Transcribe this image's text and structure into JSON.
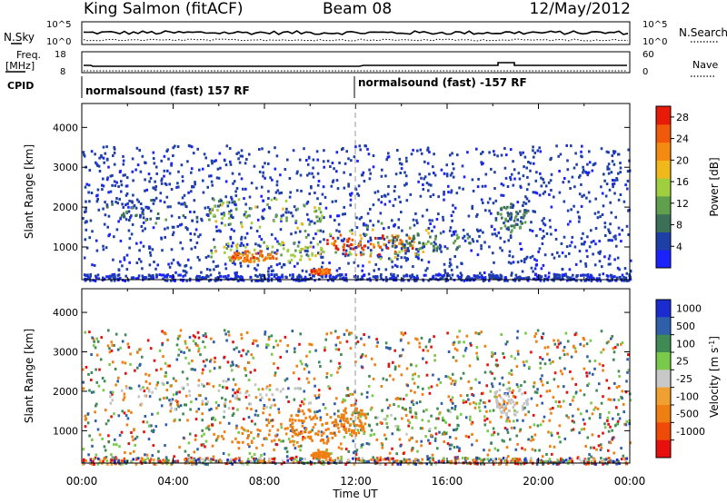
{
  "header": {
    "station": "King Salmon (fitACF)",
    "beam": "Beam 08",
    "date": "12/May/2012"
  },
  "left_labels": {
    "nsky": "N.Sky",
    "freq": "Freq.",
    "freq_unit": "[MHz]",
    "cpid": "CPID"
  },
  "right_labels": {
    "nsearch": "N.Search",
    "nave": "Nave"
  },
  "noise_axis": {
    "left_ticks": [
      "10^5",
      "10^0"
    ],
    "right_ticks": [
      "10^5",
      "10^0"
    ]
  },
  "freq_axis": {
    "left_ticks": [
      "18",
      "8"
    ],
    "right_ticks": [
      "60",
      "0"
    ]
  },
  "cpid_labels": [
    "normalsound (fast) 157 RF",
    "normalsound (fast) -157 RF"
  ],
  "colors": {
    "power_scale": [
      "#1a22ff",
      "#1f3fa8",
      "#3c6f58",
      "#5f9f4e",
      "#9fcf3f",
      "#f0b81a",
      "#f58a10",
      "#f05a0a",
      "#e81a08"
    ],
    "velocity_scale": [
      "#1a2ccf",
      "#2f5faa",
      "#3f8a55",
      "#7ac94a",
      "#c8c8c8",
      "#f0a030",
      "#f07f12",
      "#f04a08",
      "#e80f0f"
    ],
    "ground_scatter": "#c4c4c4"
  },
  "chart_data": [
    {
      "type": "heatmap",
      "title": "Power",
      "xlabel": "Time UT",
      "ylabel": "Slant Range [km]",
      "x_ticks": [
        "00:00",
        "04:00",
        "08:00",
        "12:00",
        "16:00",
        "20:00",
        "00:00"
      ],
      "y_ticks": [
        "1000",
        "2000",
        "3000",
        "4000"
      ],
      "xlim_hours": [
        0,
        24
      ],
      "ylim_km": [
        180,
        4600
      ],
      "colorbar_label": "Power [dB]",
      "colorbar_ticks": [
        "4",
        "8",
        "12",
        "16",
        "20",
        "24",
        "28"
      ],
      "colorbar_range": [
        0,
        30
      ],
      "features": [
        {
          "start_h": 1.0,
          "end_h": 7.5,
          "range_km": [
            1600,
            2300
          ],
          "level_db": 8
        },
        {
          "start_h": 5.5,
          "end_h": 10.5,
          "range_km": [
            1400,
            2300
          ],
          "level_db": 14
        },
        {
          "start_h": 5.5,
          "end_h": 10.5,
          "range_km": [
            600,
            1200
          ],
          "level_db": 14
        },
        {
          "start_h": 6.5,
          "end_h": 8.5,
          "range_km": [
            650,
            950
          ],
          "level_db": 24
        },
        {
          "start_h": 9.5,
          "end_h": 15.5,
          "range_km": [
            650,
            1700
          ],
          "level_db": 16
        },
        {
          "start_h": 10.5,
          "end_h": 14.5,
          "range_km": [
            800,
            1400
          ],
          "level_db": 26
        },
        {
          "start_h": 13.5,
          "end_h": 17.0,
          "range_km": [
            900,
            1400
          ],
          "level_db": 8
        },
        {
          "start_h": 18.0,
          "end_h": 19.5,
          "range_km": [
            1400,
            2200
          ],
          "level_db": 8
        },
        {
          "start_h": 10.0,
          "end_h": 10.8,
          "range_km": [
            330,
            500
          ],
          "level_db": 24
        }
      ]
    },
    {
      "type": "heatmap",
      "title": "Velocity",
      "xlabel": "Time UT",
      "ylabel": "Slant Range [km]",
      "x_ticks": [
        "00:00",
        "04:00",
        "08:00",
        "12:00",
        "16:00",
        "20:00",
        "00:00"
      ],
      "y_ticks": [
        "1000",
        "2000",
        "3000",
        "4000"
      ],
      "xlim_hours": [
        0,
        24
      ],
      "ylim_km": [
        180,
        4600
      ],
      "colorbar_label": "Velocity [m s-1]",
      "colorbar_label_main": "Velocity [m s",
      "colorbar_label_sup": "-1",
      "colorbar_label_end": "]",
      "colorbar_ticks": [
        "1000",
        "500",
        "100",
        "25",
        "-25",
        "-100",
        "-500",
        "-1000"
      ],
      "features": [
        {
          "start_h": 1.0,
          "end_h": 10.0,
          "range_km": [
            1500,
            2300
          ],
          "velocity": "ground"
        },
        {
          "start_h": 6.0,
          "end_h": 11.0,
          "range_km": [
            600,
            1200
          ],
          "velocity": -300
        },
        {
          "start_h": 9.0,
          "end_h": 11.5,
          "range_km": [
            800,
            1600
          ],
          "velocity": -200
        },
        {
          "start_h": 11.5,
          "end_h": 16.5,
          "range_km": [
            800,
            1700
          ],
          "velocity": 80
        },
        {
          "start_h": 11.3,
          "end_h": 12.4,
          "range_km": [
            900,
            1700
          ],
          "velocity": -300
        },
        {
          "start_h": 18.0,
          "end_h": 19.5,
          "range_km": [
            1400,
            2200
          ],
          "velocity": "ground"
        },
        {
          "start_h": 10.0,
          "end_h": 10.8,
          "range_km": [
            330,
            500
          ],
          "velocity": -300
        }
      ]
    }
  ]
}
